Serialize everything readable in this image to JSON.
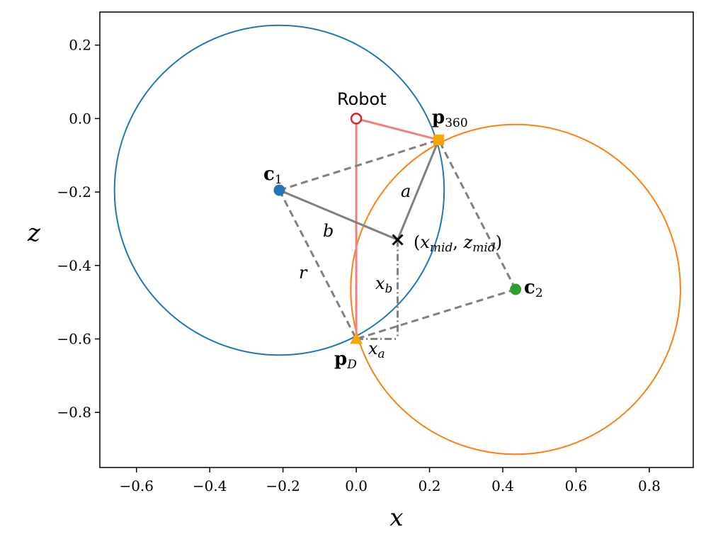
{
  "chart_data": {
    "type": "scatter",
    "xlabel": "x",
    "ylabel": "z",
    "xlim": [
      -0.7,
      0.92
    ],
    "ylim": [
      -0.95,
      0.29
    ],
    "x_ticks": [
      -0.6,
      -0.4,
      -0.2,
      0.0,
      0.2,
      0.4,
      0.6,
      0.8
    ],
    "y_ticks": [
      0.2,
      0.0,
      -0.2,
      -0.4,
      -0.6,
      -0.8
    ],
    "x_tick_labels": [
      "−0.6",
      "−0.4",
      "−0.2",
      "0.0",
      "0.2",
      "0.4",
      "0.6",
      "0.8"
    ],
    "y_tick_labels": [
      "0.2",
      "0.0",
      "−0.2",
      "−0.4",
      "−0.6",
      "−0.8"
    ],
    "grid": false,
    "colors": {
      "circle1": "#1f77b4",
      "circle2": "#ff7f0e",
      "robot": "#d62728",
      "robot_lines": "#f08080",
      "p_points": "#ffa500",
      "c2": "#2ca02c",
      "construction": "#808080",
      "mid_marker": "#000000"
    },
    "circles": [
      {
        "center": [
          -0.21,
          -0.195
        ],
        "radius": 0.45,
        "color": "circle1"
      },
      {
        "center": [
          0.435,
          -0.465
        ],
        "radius": 0.45,
        "color": "circle2"
      }
    ],
    "points": {
      "robot": {
        "x": 0.0,
        "y": 0.0,
        "label": "Robot"
      },
      "p360": {
        "x": 0.225,
        "y": -0.058,
        "label_main": "p",
        "label_sub": "360"
      },
      "pD": {
        "x": 0.0,
        "y": -0.6,
        "label_main": "p",
        "label_sub": "D"
      },
      "c1": {
        "x": -0.21,
        "y": -0.195,
        "label_main": "c",
        "label_sub": "1"
      },
      "c2": {
        "x": 0.435,
        "y": -0.465,
        "label_main": "c",
        "label_sub": "2"
      },
      "mid": {
        "x": 0.113,
        "y": -0.33,
        "label_open": "(",
        "label_x": "x",
        "label_xsub": "mid",
        "label_comma": ", ",
        "label_z": "z",
        "label_zsub": "mid",
        "label_close": ")"
      }
    },
    "segment_labels": {
      "a": "a",
      "b": "b",
      "r": "r",
      "xb_main": "x",
      "xb_sub": "b",
      "xa_main": "x",
      "xa_sub": "a"
    }
  }
}
